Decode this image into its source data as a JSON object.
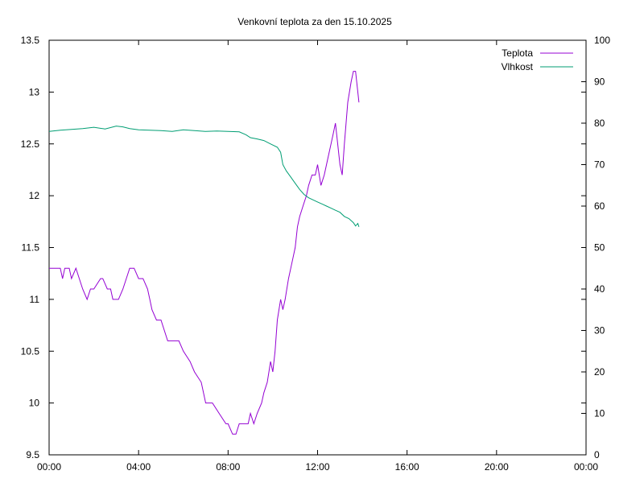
{
  "chart_data": {
    "type": "line",
    "title": "Venkovní teplota za den 15.10.2025",
    "xlabel": "",
    "ylabel": "",
    "y2label": "",
    "grid": false,
    "legend_position": "top-right",
    "x_ticks": [
      "00:00",
      "04:00",
      "08:00",
      "12:00",
      "16:00",
      "20:00",
      "00:00"
    ],
    "x_range_hours": [
      0,
      24
    ],
    "y_ticks": [
      "9.5",
      "10",
      "10.5",
      "11",
      "11.5",
      "12",
      "12.5",
      "13",
      "13.5"
    ],
    "ylim": [
      9.5,
      13.5
    ],
    "y2_ticks": [
      "0",
      "10",
      "20",
      "30",
      "40",
      "50",
      "60",
      "70",
      "80",
      "90",
      "100"
    ],
    "y2lim": [
      0,
      100
    ],
    "series": [
      {
        "name": "Teplota",
        "axis": "left",
        "color": "#9400d3",
        "x_hours": [
          0.0,
          0.5,
          0.6,
          0.7,
          0.9,
          1.0,
          1.2,
          1.35,
          1.5,
          1.7,
          1.85,
          2.0,
          2.3,
          2.4,
          2.6,
          2.75,
          2.85,
          3.1,
          3.3,
          3.45,
          3.6,
          3.8,
          4.0,
          4.2,
          4.4,
          4.5,
          4.6,
          4.8,
          5.0,
          5.3,
          5.5,
          5.6,
          5.8,
          6.0,
          6.3,
          6.5,
          6.8,
          7.0,
          7.3,
          7.6,
          7.9,
          8.0,
          8.2,
          8.35,
          8.5,
          8.7,
          8.9,
          9.0,
          9.15,
          9.3,
          9.5,
          9.6,
          9.75,
          9.9,
          10.0,
          10.1,
          10.2,
          10.35,
          10.45,
          10.55,
          10.7,
          10.8,
          11.0,
          11.1,
          11.2,
          11.35,
          11.5,
          11.6,
          11.75,
          11.9,
          12.0,
          12.15,
          12.3,
          12.4,
          12.5,
          12.6,
          12.7,
          12.8,
          12.9,
          13.0,
          13.1,
          13.2,
          13.35,
          13.5,
          13.6,
          13.7,
          13.75,
          13.85
        ],
        "values": [
          11.3,
          11.3,
          11.2,
          11.3,
          11.3,
          11.2,
          11.3,
          11.2,
          11.1,
          11.0,
          11.1,
          11.1,
          11.2,
          11.2,
          11.1,
          11.1,
          11.0,
          11.0,
          11.1,
          11.2,
          11.3,
          11.3,
          11.2,
          11.2,
          11.1,
          11.0,
          10.9,
          10.8,
          10.8,
          10.6,
          10.6,
          10.6,
          10.6,
          10.5,
          10.4,
          10.3,
          10.2,
          10.0,
          10.0,
          9.9,
          9.8,
          9.8,
          9.7,
          9.7,
          9.8,
          9.8,
          9.8,
          9.9,
          9.8,
          9.9,
          10.0,
          10.1,
          10.2,
          10.4,
          10.3,
          10.5,
          10.8,
          11.0,
          10.9,
          11.0,
          11.2,
          11.3,
          11.5,
          11.7,
          11.8,
          11.9,
          12.0,
          12.1,
          12.2,
          12.2,
          12.3,
          12.1,
          12.2,
          12.3,
          12.4,
          12.5,
          12.6,
          12.7,
          12.5,
          12.3,
          12.2,
          12.5,
          12.9,
          13.1,
          13.2,
          13.2,
          13.1,
          12.9
        ]
      },
      {
        "name": "Vlhkost",
        "axis": "right",
        "color": "#009e73",
        "x_hours": [
          0.0,
          0.5,
          1.0,
          1.5,
          2.0,
          2.5,
          3.0,
          3.3,
          3.6,
          4.0,
          4.5,
          5.0,
          5.5,
          6.0,
          6.5,
          7.0,
          7.5,
          8.0,
          8.5,
          8.8,
          9.0,
          9.3,
          9.6,
          9.9,
          10.2,
          10.35,
          10.45,
          10.6,
          10.8,
          11.0,
          11.2,
          11.4,
          11.6,
          11.8,
          12.0,
          12.2,
          12.4,
          12.6,
          12.8,
          13.0,
          13.2,
          13.4,
          13.6,
          13.7,
          13.8,
          13.85
        ],
        "values": [
          78.0,
          78.3,
          78.5,
          78.7,
          79.0,
          78.6,
          79.3,
          79.1,
          78.7,
          78.4,
          78.3,
          78.2,
          78.0,
          78.4,
          78.2,
          78.0,
          78.1,
          78.0,
          77.9,
          77.2,
          76.5,
          76.2,
          75.8,
          75.0,
          74.2,
          73.0,
          70.0,
          68.5,
          67.0,
          65.5,
          64.0,
          62.8,
          62.0,
          61.5,
          61.0,
          60.5,
          60.0,
          59.5,
          59.0,
          58.5,
          57.5,
          57.0,
          56.0,
          55.2,
          55.8,
          55.0
        ]
      }
    ]
  }
}
